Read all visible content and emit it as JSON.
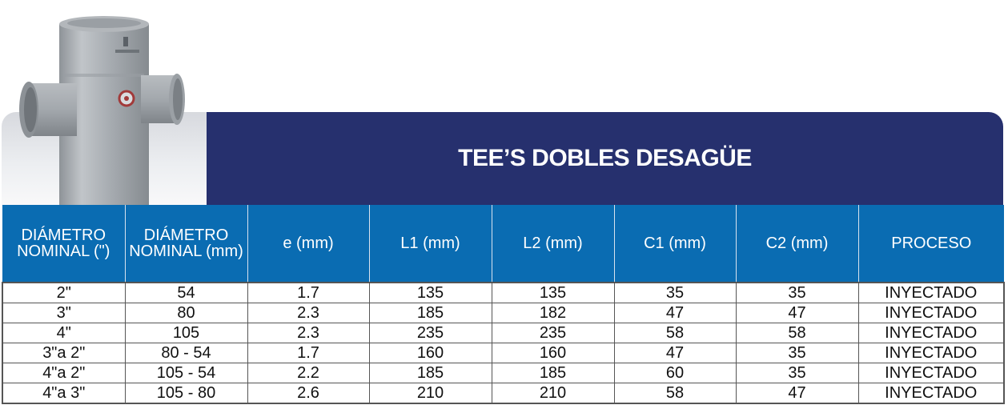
{
  "title": "TEE’S DOBLES DESAGÜE",
  "colors": {
    "banner": "#26306e",
    "header": "#0a6cb2",
    "pipe": "#a9aeb3"
  },
  "image": {
    "brand_mark": "tecnoductos",
    "subject": "double-tee-pipe-fitting"
  },
  "table": {
    "headers": [
      "DIÁMETRO NOMINAL (\")",
      "DIÁMETRO NOMINAL (mm)",
      "e (mm)",
      "L1 (mm)",
      "L2 (mm)",
      "C1 (mm)",
      "C2 (mm)",
      "PROCESO"
    ],
    "rows": [
      [
        "2\"",
        "54",
        "1.7",
        "135",
        "135",
        "35",
        "35",
        "INYECTADO"
      ],
      [
        "3\"",
        "80",
        "2.3",
        "185",
        "182",
        "47",
        "47",
        "INYECTADO"
      ],
      [
        "4\"",
        "105",
        "2.3",
        "235",
        "235",
        "58",
        "58",
        "INYECTADO"
      ],
      [
        "3\"a 2\"",
        "80 - 54",
        "1.7",
        "160",
        "160",
        "47",
        "35",
        "INYECTADO"
      ],
      [
        "4\"a 2\"",
        "105 - 54",
        "2.2",
        "185",
        "185",
        "60",
        "35",
        "INYECTADO"
      ],
      [
        "4\"a 3\"",
        "105 - 80",
        "2.6",
        "210",
        "210",
        "58",
        "47",
        "INYECTADO"
      ]
    ]
  }
}
